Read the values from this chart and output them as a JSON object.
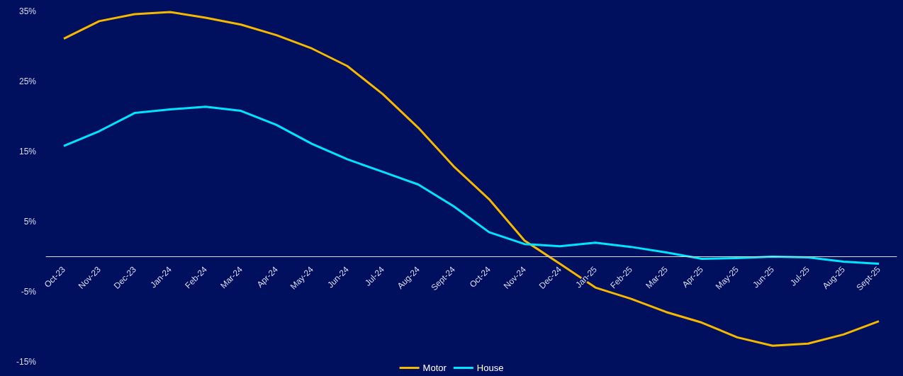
{
  "chart_data": {
    "type": "line",
    "categories": [
      "Oct-23",
      "Nov-23",
      "Dec-23",
      "Jan-24",
      "Feb-24",
      "Mar-24",
      "Apr-24",
      "May-24",
      "Jun-24",
      "Jul-24",
      "Aug-24",
      "Sept-24",
      "Oct-24",
      "Nov-24",
      "Dec-24",
      "Jan-25",
      "Feb-25",
      "Mar-25",
      "Apr-25",
      "May-25",
      "Jun-25",
      "Jul-25",
      "Aug-25",
      "Sept-25"
    ],
    "series": [
      {
        "name": "Motor",
        "color": "#f5b800",
        "values": [
          31.1,
          33.6,
          34.6,
          34.9,
          34.1,
          33.1,
          31.6,
          29.7,
          27.2,
          23.2,
          18.4,
          12.9,
          8.2,
          2.3,
          -1.0,
          -4.4,
          -6.0,
          -7.9,
          -9.4,
          -11.5,
          -12.7,
          -12.4,
          -11.1,
          -9.2
        ]
      },
      {
        "name": "House",
        "color": "#00e5ff",
        "values": [
          15.8,
          17.9,
          20.5,
          21.0,
          21.4,
          20.8,
          18.8,
          16.1,
          13.9,
          12.1,
          10.3,
          7.2,
          3.5,
          1.8,
          1.5,
          2.0,
          1.4,
          0.6,
          -0.3,
          -0.2,
          0.0,
          -0.1,
          -0.7,
          -1.0
        ]
      }
    ],
    "ylim": [
      -15,
      35
    ],
    "yticks": [
      {
        "value": -15,
        "label": "-15%"
      },
      {
        "value": -5,
        "label": "-5%"
      },
      {
        "value": 5,
        "label": "5%"
      },
      {
        "value": 15,
        "label": "15%"
      },
      {
        "value": 25,
        "label": "25%"
      },
      {
        "value": 35,
        "label": "35%"
      }
    ],
    "grid": false,
    "legend": "bottom",
    "marker": "none",
    "line_style": "solid"
  }
}
